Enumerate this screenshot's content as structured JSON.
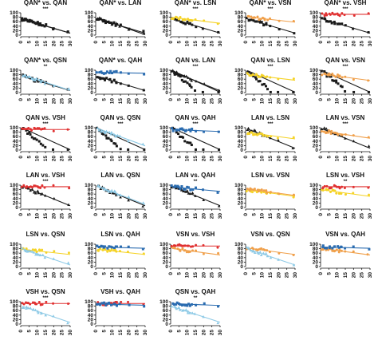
{
  "colors": {
    "QAN*": "#1a1a1a",
    "QAN": "#1a1a1a",
    "LAN": "#1a1a1a",
    "QSN": "#8ecae6",
    "LSN": "#f5d327",
    "VSN": "#f0a04b",
    "QAH": "#2b6cb0",
    "VSH": "#e03131"
  },
  "marker_style": {
    "QAN*": "square",
    "QAN": "square",
    "LAN": "triangle",
    "QSN": "triangle",
    "LSN": "circle",
    "VSN": "circle",
    "QAH": "square",
    "VSH": "circle"
  },
  "chart_data": [
    {
      "type": "scatter",
      "title": "QAN* vs. QAN",
      "significance": "***",
      "series": [
        "QAN*",
        "QAN"
      ],
      "xlim": [
        0,
        30
      ],
      "ylim": [
        0,
        100
      ],
      "xticks": [
        0,
        5,
        10,
        15,
        20,
        25,
        30
      ],
      "yticks": [
        0,
        20,
        40,
        60,
        80,
        100
      ],
      "fits": [
        {
          "series": "QAN*",
          "intercept": 75,
          "slope": -2.2
        },
        {
          "series": "QAN",
          "intercept": 72,
          "slope": -2.1
        }
      ],
      "points": []
    },
    {
      "type": "scatter",
      "title": "QAN* vs. LAN",
      "significance": "",
      "series": [
        "QAN*",
        "LAN"
      ],
      "xlim": [
        0,
        30
      ],
      "ylim": [
        0,
        100
      ],
      "xticks": [
        0,
        5,
        10,
        15,
        20,
        25,
        30
      ],
      "yticks": [
        0,
        20,
        40,
        60,
        80,
        100
      ],
      "fits": [
        {
          "series": "QAN*",
          "intercept": 75,
          "slope": -2.2
        },
        {
          "series": "LAN",
          "intercept": 80,
          "slope": -2.6
        }
      ],
      "points": []
    },
    {
      "type": "scatter",
      "title": "QAN* vs. LSN",
      "significance": "***",
      "series": [
        "QAN*",
        "LSN"
      ],
      "xlim": [
        0,
        30
      ],
      "ylim": [
        0,
        100
      ],
      "xticks": [
        0,
        5,
        10,
        15,
        20,
        25,
        30
      ],
      "yticks": [
        0,
        20,
        40,
        60,
        80,
        100
      ],
      "fits": [
        {
          "series": "QAN*",
          "intercept": 75,
          "slope": -2.2
        },
        {
          "series": "LSN",
          "intercept": 80,
          "slope": -0.9
        }
      ],
      "points": []
    },
    {
      "type": "scatter",
      "title": "QAN* vs. VSN",
      "significance": "***",
      "series": [
        "QAN*",
        "VSN"
      ],
      "xlim": [
        0,
        30
      ],
      "ylim": [
        0,
        100
      ],
      "xticks": [
        0,
        5,
        10,
        15,
        20,
        25,
        30
      ],
      "yticks": [
        0,
        20,
        40,
        60,
        80,
        100
      ],
      "fits": [
        {
          "series": "QAN*",
          "intercept": 75,
          "slope": -2.2
        },
        {
          "series": "VSN",
          "intercept": 82,
          "slope": -0.8
        }
      ],
      "points": []
    },
    {
      "type": "scatter",
      "title": "QAN* vs. VSH",
      "significance": "***",
      "series": [
        "QAN*",
        "VSH"
      ],
      "xlim": [
        0,
        30
      ],
      "ylim": [
        0,
        100
      ],
      "xticks": [
        0,
        5,
        10,
        15,
        20,
        25,
        30
      ],
      "yticks": [
        0,
        20,
        40,
        60,
        80,
        100
      ],
      "fits": [
        {
          "series": "QAN*",
          "intercept": 75,
          "slope": -2.2
        },
        {
          "series": "VSH",
          "intercept": 93,
          "slope": 0.0
        }
      ],
      "points": []
    },
    {
      "type": "scatter",
      "title": "QAN* vs. QSN",
      "significance": "**",
      "series": [
        "QAN*",
        "QSN"
      ],
      "xlim": [
        0,
        30
      ],
      "ylim": [
        0,
        100
      ],
      "xticks": [
        0,
        5,
        10,
        15,
        20,
        25,
        30
      ],
      "yticks": [
        0,
        20,
        40,
        60,
        80,
        100
      ],
      "fits": [
        {
          "series": "QAN*",
          "intercept": 75,
          "slope": -2.2
        },
        {
          "series": "QSN",
          "intercept": 82,
          "slope": -2.4
        }
      ],
      "points": []
    },
    {
      "type": "scatter",
      "title": "QAN* vs. QAH",
      "significance": "",
      "series": [
        "QAN*",
        "QAH"
      ],
      "xlim": [
        0,
        30
      ],
      "ylim": [
        0,
        100
      ],
      "xticks": [
        0,
        5,
        10,
        15,
        20,
        25,
        30
      ],
      "yticks": [
        0,
        20,
        40,
        60,
        80,
        100
      ],
      "fits": [
        {
          "series": "QAN*",
          "intercept": 75,
          "slope": -2.2
        },
        {
          "series": "QAH",
          "intercept": 90,
          "slope": -0.1
        }
      ],
      "points": []
    },
    {
      "type": "scatter",
      "title": "QAN vs. LAN",
      "significance": "***",
      "series": [
        "QAN",
        "LAN"
      ],
      "xlim": [
        0,
        30
      ],
      "ylim": [
        0,
        100
      ],
      "xticks": [
        0,
        5,
        10,
        15,
        20,
        25,
        30
      ],
      "yticks": [
        0,
        20,
        40,
        60,
        80,
        100
      ],
      "fits": [
        {
          "series": "QAN",
          "intercept": 105,
          "slope": -6.5
        },
        {
          "series": "LAN",
          "intercept": 98,
          "slope": -3.0
        }
      ],
      "points": []
    },
    {
      "type": "scatter",
      "title": "QAN vs. LSN",
      "significance": "***",
      "series": [
        "QAN",
        "LSN"
      ],
      "xlim": [
        0,
        30
      ],
      "ylim": [
        0,
        100
      ],
      "xticks": [
        0,
        5,
        10,
        15,
        20,
        25,
        30
      ],
      "yticks": [
        0,
        20,
        40,
        60,
        80,
        100
      ],
      "fits": [
        {
          "series": "QAN",
          "intercept": 105,
          "slope": -6.5
        },
        {
          "series": "LSN",
          "intercept": 82,
          "slope": -0.9
        }
      ],
      "points": []
    },
    {
      "type": "scatter",
      "title": "QAN vs. VSN",
      "significance": "***",
      "series": [
        "QAN",
        "VSN"
      ],
      "xlim": [
        0,
        30
      ],
      "ylim": [
        0,
        100
      ],
      "xticks": [
        0,
        5,
        10,
        15,
        20,
        25,
        30
      ],
      "yticks": [
        0,
        20,
        40,
        60,
        80,
        100
      ],
      "fits": [
        {
          "series": "QAN",
          "intercept": 105,
          "slope": -6.5
        },
        {
          "series": "VSN",
          "intercept": 84,
          "slope": -1.0
        }
      ],
      "points": []
    },
    {
      "type": "scatter",
      "title": "QAN vs. VSH",
      "significance": "***",
      "series": [
        "QAN",
        "VSH"
      ],
      "xlim": [
        0,
        30
      ],
      "ylim": [
        0,
        100
      ],
      "xticks": [
        0,
        5,
        10,
        15,
        20,
        25,
        30
      ],
      "yticks": [
        0,
        20,
        40,
        60,
        80,
        100
      ],
      "fits": [
        {
          "series": "QAN",
          "intercept": 105,
          "slope": -6.5
        },
        {
          "series": "VSH",
          "intercept": 92,
          "slope": 0.0
        }
      ],
      "points": []
    },
    {
      "type": "scatter",
      "title": "QAN vs. QSN",
      "significance": "***",
      "series": [
        "QAN",
        "QSN"
      ],
      "xlim": [
        0,
        30
      ],
      "ylim": [
        0,
        100
      ],
      "xticks": [
        0,
        5,
        10,
        15,
        20,
        25,
        30
      ],
      "yticks": [
        0,
        20,
        40,
        60,
        80,
        100
      ],
      "fits": [
        {
          "series": "QAN",
          "intercept": 105,
          "slope": -6.5
        },
        {
          "series": "QSN",
          "intercept": 100,
          "slope": -2.7
        }
      ],
      "points": []
    },
    {
      "type": "scatter",
      "title": "QAN vs. QAH",
      "significance": "***",
      "series": [
        "QAN",
        "QAH"
      ],
      "xlim": [
        0,
        30
      ],
      "ylim": [
        0,
        100
      ],
      "xticks": [
        0,
        5,
        10,
        15,
        20,
        25,
        30
      ],
      "yticks": [
        0,
        20,
        40,
        60,
        80,
        100
      ],
      "fits": [
        {
          "series": "QAN",
          "intercept": 105,
          "slope": -6.5
        },
        {
          "series": "QAH",
          "intercept": 92,
          "slope": -0.3
        }
      ],
      "points": []
    },
    {
      "type": "scatter",
      "title": "LAN vs. LSN",
      "significance": "***",
      "series": [
        "LAN",
        "LSN"
      ],
      "xlim": [
        0,
        30
      ],
      "ylim": [
        0,
        100
      ],
      "xticks": [
        0,
        5,
        10,
        15,
        20,
        25,
        30
      ],
      "yticks": [
        0,
        20,
        40,
        60,
        80,
        100
      ],
      "fits": [
        {
          "series": "LAN",
          "intercept": 98,
          "slope": -3.0
        },
        {
          "series": "LSN",
          "intercept": 80,
          "slope": -1.0
        }
      ],
      "points": []
    },
    {
      "type": "scatter",
      "title": "LAN vs. VSN",
      "significance": "***",
      "series": [
        "LAN",
        "VSN"
      ],
      "xlim": [
        0,
        30
      ],
      "ylim": [
        0,
        100
      ],
      "xticks": [
        0,
        5,
        10,
        15,
        20,
        25,
        30
      ],
      "yticks": [
        0,
        20,
        40,
        60,
        80,
        100
      ],
      "fits": [
        {
          "series": "LAN",
          "intercept": 98,
          "slope": -3.0
        },
        {
          "series": "VSN",
          "intercept": 86,
          "slope": -1.1
        }
      ],
      "points": []
    },
    {
      "type": "scatter",
      "title": "LAN vs. VSH",
      "significance": "***",
      "series": [
        "LAN",
        "VSH"
      ],
      "xlim": [
        0,
        30
      ],
      "ylim": [
        0,
        100
      ],
      "xticks": [
        0,
        5,
        10,
        15,
        20,
        25,
        30
      ],
      "yticks": [
        0,
        20,
        40,
        60,
        80,
        100
      ],
      "fits": [
        {
          "series": "LAN",
          "intercept": 98,
          "slope": -3.0
        },
        {
          "series": "VSH",
          "intercept": 93,
          "slope": 0.0
        }
      ],
      "points": []
    },
    {
      "type": "scatter",
      "title": "LAN vs. QSN",
      "significance": "",
      "series": [
        "LAN",
        "QSN"
      ],
      "xlim": [
        0,
        30
      ],
      "ylim": [
        0,
        100
      ],
      "xticks": [
        0,
        5,
        10,
        15,
        20,
        25,
        30
      ],
      "yticks": [
        0,
        20,
        40,
        60,
        80,
        100
      ],
      "fits": [
        {
          "series": "LAN",
          "intercept": 98,
          "slope": -3.0
        },
        {
          "series": "QSN",
          "intercept": 98,
          "slope": -2.8
        }
      ],
      "points": []
    },
    {
      "type": "scatter",
      "title": "LAN vs. QAH",
      "significance": "**",
      "series": [
        "LAN",
        "QAH"
      ],
      "xlim": [
        0,
        30
      ],
      "ylim": [
        0,
        100
      ],
      "xticks": [
        0,
        5,
        10,
        15,
        20,
        25,
        30
      ],
      "yticks": [
        0,
        20,
        40,
        60,
        80,
        100
      ],
      "fits": [
        {
          "series": "LAN",
          "intercept": 98,
          "slope": -3.0
        },
        {
          "series": "QAH",
          "intercept": 93,
          "slope": -0.7
        }
      ],
      "points": []
    },
    {
      "type": "scatter",
      "title": "LSN vs. VSN",
      "significance": "",
      "series": [
        "LSN",
        "VSN"
      ],
      "xlim": [
        0,
        30
      ],
      "ylim": [
        0,
        100
      ],
      "xticks": [
        0,
        5,
        10,
        15,
        20,
        25,
        30
      ],
      "yticks": [
        0,
        20,
        40,
        60,
        80,
        100
      ],
      "fits": [
        {
          "series": "LSN",
          "intercept": 80,
          "slope": -1.0
        },
        {
          "series": "VSN",
          "intercept": 84,
          "slope": -1.0
        }
      ],
      "points": []
    },
    {
      "type": "scatter",
      "title": "LSN vs. VSH",
      "significance": "**",
      "series": [
        "LSN",
        "VSH"
      ],
      "xlim": [
        0,
        30
      ],
      "ylim": [
        0,
        100
      ],
      "xticks": [
        0,
        5,
        10,
        15,
        20,
        25,
        30
      ],
      "yticks": [
        0,
        20,
        40,
        60,
        80,
        100
      ],
      "fits": [
        {
          "series": "LSN",
          "intercept": 80,
          "slope": -1.0
        },
        {
          "series": "VSH",
          "intercept": 93,
          "slope": 0.0
        }
      ],
      "points": []
    },
    {
      "type": "scatter",
      "title": "LSN vs. QSN",
      "significance": "",
      "series": [
        "LSN",
        "QSN"
      ],
      "xlim": [
        0,
        30
      ],
      "ylim": [
        0,
        100
      ],
      "xticks": [
        0,
        5,
        10,
        15,
        20,
        25,
        30
      ],
      "yticks": [
        0,
        20,
        40,
        60,
        80,
        100
      ],
      "fits": [
        {
          "series": "LSN",
          "intercept": 78,
          "slope": -0.8
        },
        {
          "series": "QSN",
          "intercept": 82,
          "slope": -2.5
        }
      ],
      "points": []
    },
    {
      "type": "scatter",
      "title": "LSN vs. QAH",
      "significance": "",
      "series": [
        "LSN",
        "QAH"
      ],
      "xlim": [
        0,
        30
      ],
      "ylim": [
        0,
        100
      ],
      "xticks": [
        0,
        5,
        10,
        15,
        20,
        25,
        30
      ],
      "yticks": [
        0,
        20,
        40,
        60,
        80,
        100
      ],
      "fits": [
        {
          "series": "LSN",
          "intercept": 78,
          "slope": -0.8
        },
        {
          "series": "QAH",
          "intercept": 88,
          "slope": -0.2
        }
      ],
      "points": []
    },
    {
      "type": "scatter",
      "title": "VSN vs. VSH",
      "significance": "",
      "series": [
        "VSN",
        "VSH"
      ],
      "xlim": [
        0,
        30
      ],
      "ylim": [
        0,
        100
      ],
      "xticks": [
        0,
        5,
        10,
        15,
        20,
        25,
        30
      ],
      "yticks": [
        0,
        20,
        40,
        60,
        80,
        100
      ],
      "fits": [
        {
          "series": "VSN",
          "intercept": 82,
          "slope": -1.0
        },
        {
          "series": "VSH",
          "intercept": 92,
          "slope": 0.0
        }
      ],
      "points": []
    },
    {
      "type": "scatter",
      "title": "VSN vs. QSN",
      "significance": "",
      "series": [
        "VSN",
        "QSN"
      ],
      "xlim": [
        0,
        30
      ],
      "ylim": [
        0,
        100
      ],
      "xticks": [
        0,
        5,
        10,
        15,
        20,
        25,
        30
      ],
      "yticks": [
        0,
        20,
        40,
        60,
        80,
        100
      ],
      "fits": [
        {
          "series": "VSN",
          "intercept": 84,
          "slope": -1.0
        },
        {
          "series": "QSN",
          "intercept": 82,
          "slope": -2.5
        }
      ],
      "points": []
    },
    {
      "type": "scatter",
      "title": "VSN vs. QAH",
      "significance": "",
      "series": [
        "VSN",
        "QAH"
      ],
      "xlim": [
        0,
        30
      ],
      "ylim": [
        0,
        100
      ],
      "xticks": [
        0,
        5,
        10,
        15,
        20,
        25,
        30
      ],
      "yticks": [
        0,
        20,
        40,
        60,
        80,
        100
      ],
      "fits": [
        {
          "series": "VSN",
          "intercept": 82,
          "slope": -1.0
        },
        {
          "series": "QAH",
          "intercept": 88,
          "slope": -0.2
        }
      ],
      "points": []
    },
    {
      "type": "scatter",
      "title": "VSH vs. QSN",
      "significance": "***",
      "series": [
        "VSH",
        "QSN"
      ],
      "xlim": [
        0,
        30
      ],
      "ylim": [
        0,
        100
      ],
      "xticks": [
        0,
        5,
        10,
        15,
        20,
        25,
        30
      ],
      "yticks": [
        0,
        20,
        40,
        60,
        80,
        100
      ],
      "fits": [
        {
          "series": "VSH",
          "intercept": 92,
          "slope": 0.0
        },
        {
          "series": "QSN",
          "intercept": 82,
          "slope": -2.5
        }
      ],
      "points": []
    },
    {
      "type": "scatter",
      "title": "VSH vs. QAH",
      "significance": "",
      "series": [
        "VSH",
        "QAH"
      ],
      "xlim": [
        0,
        30
      ],
      "ylim": [
        0,
        100
      ],
      "xticks": [
        0,
        5,
        10,
        15,
        20,
        25,
        30
      ],
      "yticks": [
        0,
        20,
        40,
        60,
        80,
        100
      ],
      "fits": [
        {
          "series": "VSH",
          "intercept": 92,
          "slope": 0.0
        },
        {
          "series": "QAH",
          "intercept": 90,
          "slope": -0.2
        }
      ],
      "points": []
    },
    {
      "type": "scatter",
      "title": "QSN vs. QAH",
      "significance": "**",
      "series": [
        "QSN",
        "QAH"
      ],
      "xlim": [
        0,
        30
      ],
      "ylim": [
        0,
        100
      ],
      "xticks": [
        0,
        5,
        10,
        15,
        20,
        25,
        30
      ],
      "yticks": [
        0,
        20,
        40,
        60,
        80,
        100
      ],
      "fits": [
        {
          "series": "QSN",
          "intercept": 80,
          "slope": -2.4
        },
        {
          "series": "QAH",
          "intercept": 92,
          "slope": -0.3
        }
      ],
      "points": []
    }
  ]
}
